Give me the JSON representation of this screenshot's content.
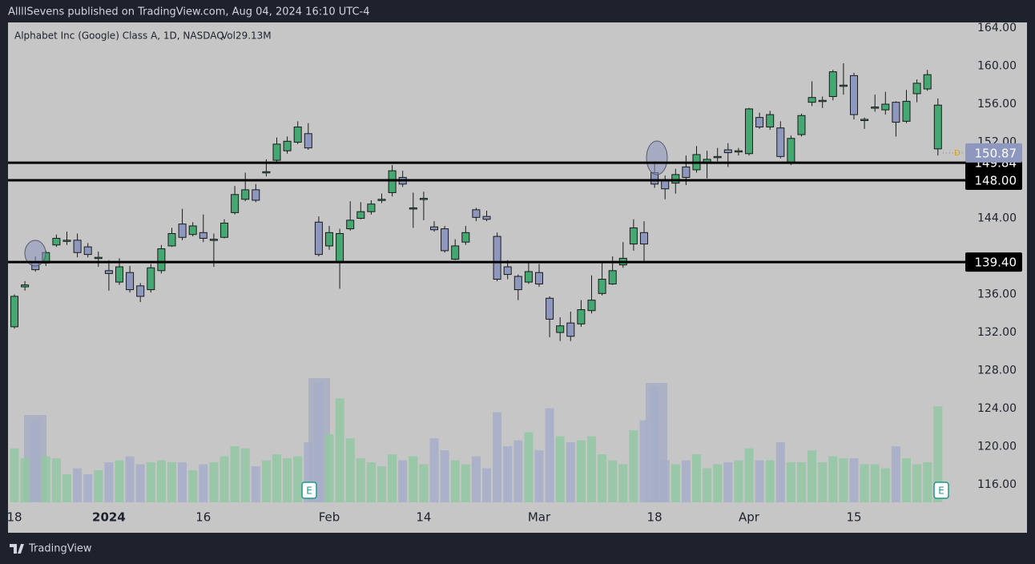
{
  "header": "AllllSevens published on TradingView.com, Aug 04, 2024 16:10 UTC-4",
  "footer": "TradingView",
  "chart_data": {
    "type": "candlestick",
    "title": "Alphabet Inc (Google) Class A, 1D, NASDAQ",
    "volume_label": "Vol29.13M",
    "categories": [
      "18",
      null,
      null,
      null,
      null,
      null,
      null,
      null,
      null,
      "2024",
      null,
      null,
      null,
      null,
      null,
      null,
      null,
      null,
      "16",
      null,
      null,
      null,
      null,
      null,
      null,
      null,
      null,
      null,
      null,
      null,
      "Feb",
      null,
      null,
      null,
      null,
      null,
      null,
      null,
      null,
      "14",
      null,
      null,
      null,
      null,
      null,
      null,
      null,
      null,
      null,
      null,
      "Mar",
      null,
      null,
      null,
      null,
      null,
      null,
      null,
      null,
      null,
      null,
      "18",
      null,
      null,
      null,
      null,
      null,
      null,
      null,
      null,
      "Apr",
      null,
      null,
      null,
      null,
      null,
      null,
      null,
      null,
      null,
      "15",
      null,
      null,
      null,
      null,
      null,
      null,
      null,
      null
    ],
    "open": [
      132.6,
      136.8,
      139.4,
      139.3,
      141.2,
      141.6,
      141.7,
      141,
      139.8,
      138.5,
      137.3,
      138.3,
      136.9,
      136.5,
      138.5,
      141.1,
      143.4,
      142.3,
      142.5,
      141.7,
      142,
      144.6,
      146,
      147,
      148.8,
      150.1,
      151.1,
      152,
      152.9,
      143.6,
      141.1,
      139.4,
      142.9,
      144,
      144.7,
      145.9,
      146.7,
      148.3,
      145,
      146,
      143.1,
      142.9,
      139.7,
      141.5,
      144.9,
      144.2,
      142.1,
      138.9,
      137.9,
      137.3,
      138.3,
      135.6,
      132,
      133,
      132.9,
      134.3,
      136.1,
      137.1,
      139.1,
      141.3,
      142.5,
      148.8,
      148,
      147.7,
      149.4,
      149.1,
      149.8,
      150.4,
      151.2,
      151,
      150.8,
      154.6,
      153.6,
      153.5,
      149.9,
      152.8,
      156.2,
      156.3,
      156.8,
      157.9,
      159,
      154.3,
      155.6,
      155.4,
      156.2,
      154.2,
      157.1,
      157.6,
      151.3
    ],
    "high": [
      136,
      137.4,
      140,
      140.6,
      142.3,
      142.6,
      142.4,
      141.4,
      140.5,
      139.6,
      139.8,
      139,
      137.2,
      139.2,
      141.2,
      143,
      145,
      143.6,
      144.4,
      142.4,
      143.9,
      147.4,
      148.8,
      147.6,
      150.2,
      152.5,
      152.6,
      154.2,
      154,
      144.2,
      143.2,
      142.9,
      145.8,
      145.7,
      145.9,
      146.6,
      149.6,
      149,
      146.7,
      146.8,
      143.7,
      143.2,
      141.8,
      143.2,
      145.1,
      144.8,
      142.5,
      139.6,
      138.1,
      139.4,
      139.2,
      135.8,
      133.6,
      134.2,
      135.4,
      138,
      139.3,
      140,
      141.5,
      143.9,
      143.7,
      150,
      148.5,
      149.2,
      150.6,
      151.6,
      151.1,
      151.4,
      151.9,
      151.4,
      155.6,
      155.1,
      155.3,
      154.2,
      152.7,
      155,
      158.4,
      156.8,
      159.6,
      160.3,
      159.3,
      154.6,
      157,
      157.3,
      156.3,
      157.5,
      158.6,
      159.6,
      156.6
    ],
    "low": [
      132.4,
      136.4,
      138.4,
      139,
      141,
      141.2,
      139.9,
      139.9,
      138.9,
      136.4,
      137,
      136.2,
      135.2,
      136.2,
      138.2,
      141,
      141.7,
      142.1,
      141.5,
      138.9,
      141.9,
      144.4,
      145.8,
      145.7,
      148.4,
      149.8,
      150.8,
      151.8,
      151.2,
      140,
      140.7,
      136.6,
      142.7,
      143.9,
      144.4,
      145.6,
      146.3,
      147.3,
      143,
      143.8,
      142.6,
      140.4,
      139.6,
      141.2,
      143.7,
      143.7,
      137.4,
      137.6,
      135.4,
      137.1,
      136.8,
      131.5,
      131.1,
      131.1,
      132.6,
      134,
      135.9,
      137,
      138.8,
      140.6,
      139.5,
      147.2,
      146,
      146.6,
      147.5,
      148.8,
      148.2,
      150,
      149.4,
      150.6,
      150.6,
      153.4,
      153.3,
      150.3,
      149.6,
      152.6,
      155.8,
      155.6,
      156.4,
      157,
      154.4,
      153.4,
      155.2,
      154.9,
      152.6,
      154,
      156.2,
      157.4,
      150.6
    ],
    "close": [
      135.8,
      137,
      138.6,
      140.4,
      141.9,
      141.7,
      140.4,
      140.2,
      139.9,
      138.2,
      138.9,
      136.5,
      135.8,
      138.8,
      140.8,
      142.4,
      142,
      143.2,
      141.9,
      141.8,
      143.5,
      146.5,
      147,
      145.9,
      148.9,
      151.8,
      152.1,
      153.6,
      151.4,
      140.2,
      142.5,
      142.4,
      143.8,
      144.7,
      145.5,
      146,
      149,
      147.6,
      145.1,
      146.1,
      142.8,
      140.6,
      141.1,
      142.5,
      144.1,
      143.9,
      137.6,
      138.1,
      136.5,
      138.4,
      137.1,
      133.4,
      132.7,
      131.6,
      134.4,
      135.4,
      137.6,
      138.5,
      139.8,
      143,
      141.3,
      147.6,
      147.1,
      148.6,
      148.3,
      150.7,
      150.2,
      150.5,
      150.9,
      151.1,
      155.5,
      153.6,
      154.9,
      150.5,
      152.4,
      154.8,
      156.7,
      156.4,
      159.4,
      158,
      154.9,
      154.4,
      155.7,
      156,
      154.1,
      156.3,
      158.2,
      159.1,
      155.9
    ],
    "volume": [
      27,
      22,
      41,
      23,
      22,
      14,
      17,
      14,
      16,
      20,
      21,
      23,
      19,
      20,
      21,
      20,
      20,
      16,
      19,
      20,
      23,
      28,
      27,
      18,
      21,
      24,
      22,
      23,
      30,
      60,
      34,
      52,
      32,
      22,
      20,
      18,
      24,
      21,
      23,
      19,
      32,
      26,
      21,
      19,
      23,
      17,
      45,
      28,
      31,
      35,
      26,
      47,
      33,
      30,
      31,
      33,
      24,
      21,
      19,
      36,
      41,
      58,
      21,
      19,
      21,
      24,
      17,
      19,
      20,
      21,
      27,
      21,
      21,
      30,
      20,
      20,
      26,
      20,
      23,
      22,
      22,
      19,
      19,
      17,
      28,
      22,
      19,
      20,
      48
    ],
    "up_color": "#45a873",
    "down_color": "#8e98bf",
    "volume_up_color": "#93c7a4",
    "volume_down_color": "#a6aec9",
    "ylim": [
      114.15,
      164.59
    ],
    "yticks": [
      {
        "value": 164,
        "label": "164.00"
      },
      {
        "value": 160,
        "label": "160.00"
      },
      {
        "value": 156,
        "label": "156.00"
      },
      {
        "value": 152,
        "label": "152.00"
      },
      {
        "value": 144,
        "label": "144.00"
      },
      {
        "value": 136,
        "label": "136.00"
      },
      {
        "value": 132,
        "label": "132.00"
      },
      {
        "value": 128,
        "label": "128.00"
      },
      {
        "value": 124,
        "label": "124.00"
      },
      {
        "value": 120,
        "label": "120.00"
      },
      {
        "value": 116,
        "label": "116.00"
      }
    ],
    "vlim": [
      0,
      240
    ],
    "grid": false,
    "levels": [
      {
        "value": 149.84,
        "label": "149.84"
      },
      {
        "value": 148,
        "label": "148.00"
      },
      {
        "value": 139.4,
        "label": "139.40"
      }
    ],
    "level_color": "#000000",
    "last_price": {
      "value": 150.87,
      "label": "150.87"
    },
    "last_price_color": "#8e98bf",
    "last_price_marker": "D",
    "earnings_marker": "E"
  }
}
